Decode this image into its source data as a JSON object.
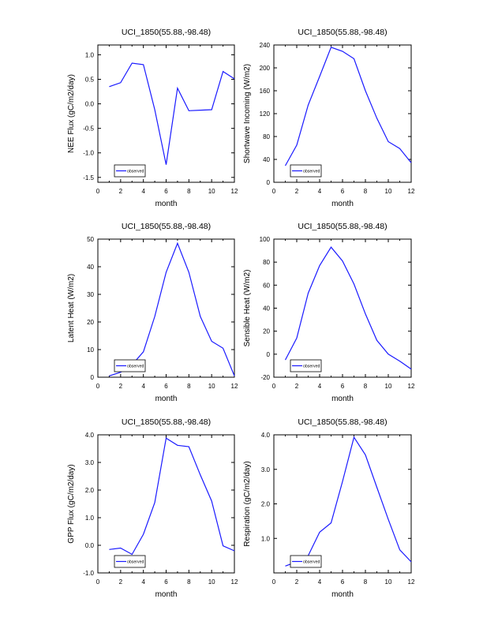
{
  "line_color": "#1a1aff",
  "axis_color": "#000000",
  "chart_data": [
    {
      "type": "line",
      "title": "UCI_1850(55.88,-98.48)",
      "xlabel": "month",
      "ylabel": "NEE Flux (gC/m2/day)",
      "xlim": [
        0,
        12
      ],
      "ylim": [
        -1.6,
        1.2
      ],
      "xticks": [
        0,
        2,
        4,
        6,
        8,
        10,
        12
      ],
      "xtick_labels": [
        "0",
        "2",
        "4",
        "6",
        "8",
        "10",
        "12"
      ],
      "yticks": [
        -1.5,
        -1.0,
        -0.5,
        0.0,
        0.5,
        1.0
      ],
      "ytick_labels": [
        "-1.5",
        "-1.0",
        "-0.5",
        "0.0",
        "0.5",
        "1.0"
      ],
      "series": [
        {
          "name": "observed",
          "x": [
            1,
            2,
            3,
            4,
            5,
            6,
            7,
            8,
            9,
            10,
            11,
            12
          ],
          "values": [
            0.35,
            0.43,
            0.83,
            0.8,
            -0.12,
            -1.24,
            0.32,
            -0.14,
            -0.13,
            -0.12,
            0.66,
            0.51
          ]
        }
      ],
      "legend": "observed",
      "legend_position": "bottom-left"
    },
    {
      "type": "line",
      "title": "UCI_1850(55.88,-98.48)",
      "xlabel": "month",
      "ylabel": "Shortwave Incoming (W/m2)",
      "xlim": [
        0,
        12
      ],
      "ylim": [
        0,
        240
      ],
      "xticks": [
        0,
        2,
        4,
        6,
        8,
        10,
        12
      ],
      "xtick_labels": [
        "0",
        "2",
        "4",
        "6",
        "8",
        "10",
        "12"
      ],
      "yticks": [
        0,
        40,
        80,
        120,
        160,
        200,
        240
      ],
      "ytick_labels": [
        "0",
        "40",
        "80",
        "120",
        "160",
        "200",
        "240"
      ],
      "series": [
        {
          "name": "observed",
          "x": [
            1,
            2,
            3,
            4,
            5,
            6,
            7,
            8,
            9,
            10,
            11,
            12
          ],
          "values": [
            29,
            65,
            135,
            185,
            236,
            229,
            216,
            160,
            112,
            71,
            59,
            34
          ]
        }
      ],
      "legend": "observed",
      "legend_position": "bottom-left"
    },
    {
      "type": "line",
      "title": "UCI_1850(55.88,-98.48)",
      "xlabel": "month",
      "ylabel": "Latent Heat (W/m2)",
      "xlim": [
        0,
        12
      ],
      "ylim": [
        0,
        50
      ],
      "xticks": [
        0,
        2,
        4,
        6,
        8,
        10,
        12
      ],
      "xtick_labels": [
        "0",
        "2",
        "4",
        "6",
        "8",
        "10",
        "12"
      ],
      "yticks": [
        0,
        10,
        20,
        30,
        40,
        50
      ],
      "ytick_labels": [
        "0",
        "10",
        "20",
        "30",
        "40",
        "50"
      ],
      "series": [
        {
          "name": "observed",
          "x": [
            1,
            2,
            3,
            4,
            5,
            6,
            7,
            8,
            9,
            10,
            11,
            12
          ],
          "values": [
            0.5,
            1.8,
            4.5,
            9.2,
            22,
            38,
            48.5,
            38,
            22,
            13,
            10.5,
            0.5
          ]
        }
      ],
      "legend": "observed",
      "legend_position": "bottom-left"
    },
    {
      "type": "line",
      "title": "UCI_1850(55.88,-98.48)",
      "xlabel": "month",
      "ylabel": "Sensible Heat (W/m2)",
      "xlim": [
        0,
        12
      ],
      "ylim": [
        -20,
        100
      ],
      "xticks": [
        0,
        2,
        4,
        6,
        8,
        10,
        12
      ],
      "xtick_labels": [
        "0",
        "2",
        "4",
        "6",
        "8",
        "10",
        "12"
      ],
      "yticks": [
        -20,
        0,
        20,
        40,
        60,
        80,
        100
      ],
      "ytick_labels": [
        "-20",
        "0",
        "20",
        "40",
        "60",
        "80",
        "100"
      ],
      "series": [
        {
          "name": "observed",
          "x": [
            1,
            2,
            3,
            4,
            5,
            6,
            7,
            8,
            9,
            10,
            11,
            12
          ],
          "values": [
            -5,
            14,
            53,
            77,
            93,
            81,
            61,
            35,
            12,
            0,
            -6,
            -13
          ]
        }
      ],
      "legend": "observed",
      "legend_position": "bottom-left"
    },
    {
      "type": "line",
      "title": "UCI_1850(55.88,-98.48)",
      "xlabel": "month",
      "ylabel": "GPP Flux (gC/m2/day)",
      "xlim": [
        0,
        12
      ],
      "ylim": [
        -1.0,
        4.0
      ],
      "xticks": [
        0,
        2,
        4,
        6,
        8,
        10,
        12
      ],
      "xtick_labels": [
        "0",
        "2",
        "4",
        "6",
        "8",
        "10",
        "12"
      ],
      "yticks": [
        -1.0,
        0.0,
        1.0,
        2.0,
        3.0,
        4.0
      ],
      "ytick_labels": [
        "-1.0",
        "0.0",
        "1.0",
        "2.0",
        "3.0",
        "4.0"
      ],
      "series": [
        {
          "name": "observed",
          "x": [
            1,
            2,
            3,
            4,
            5,
            6,
            7,
            8,
            9,
            10,
            11,
            12
          ],
          "values": [
            -0.15,
            -0.1,
            -0.33,
            0.4,
            1.55,
            3.88,
            3.62,
            3.57,
            2.55,
            1.6,
            -0.02,
            -0.2
          ]
        }
      ],
      "legend": "observed",
      "legend_position": "bottom-left"
    },
    {
      "type": "line",
      "title": "UCI_1850(55.88,-98.48)",
      "xlabel": "month",
      "ylabel": "Respiration (gC/m2/day)",
      "xlim": [
        0,
        12
      ],
      "ylim": [
        0.0,
        4.0
      ],
      "xticks": [
        0,
        2,
        4,
        6,
        8,
        10,
        12
      ],
      "xtick_labels": [
        "0",
        "2",
        "4",
        "6",
        "8",
        "10",
        "12"
      ],
      "yticks": [
        1.0,
        2.0,
        3.0,
        4.0
      ],
      "ytick_labels": [
        "1.0",
        "2.0",
        "3.0",
        "4.0"
      ],
      "series": [
        {
          "name": "observed",
          "x": [
            1,
            2,
            3,
            4,
            5,
            6,
            7,
            8,
            9,
            10,
            11,
            12
          ],
          "values": [
            0.2,
            0.32,
            0.5,
            1.18,
            1.45,
            2.65,
            3.93,
            3.42,
            2.48,
            1.55,
            0.67,
            0.32
          ]
        }
      ],
      "legend": "observed",
      "legend_position": "bottom-left"
    }
  ]
}
